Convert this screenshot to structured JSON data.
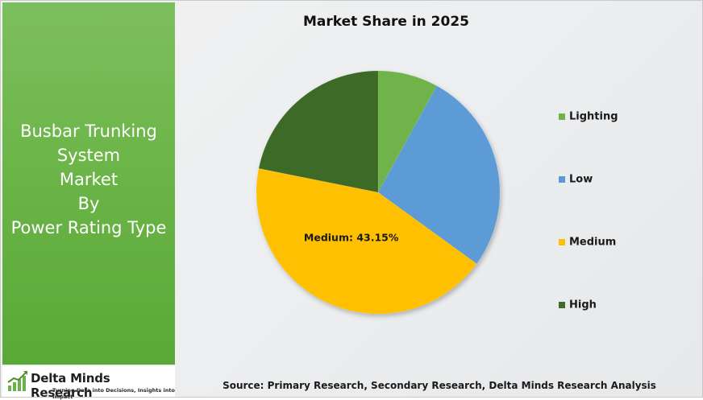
{
  "panel": {
    "title_lines": [
      "Busbar Trunking",
      "System",
      "Market",
      "By",
      "Power Rating Type"
    ]
  },
  "logo": {
    "name": "Delta Minds Research",
    "tagline": "Turning Data into Decisions, Insights into Impact"
  },
  "source_text": "Source: Primary Research, Secondary Research, Delta Minds Research Analysis",
  "chart_data": {
    "type": "pie",
    "title": "Market Share in 2025",
    "legend_position": "right",
    "slices": [
      {
        "label": "Lighting",
        "value": 8.0,
        "color": "#70b34c"
      },
      {
        "label": "Low",
        "value": 27.0,
        "color": "#5b9bd5"
      },
      {
        "label": "Medium",
        "value": 43.15,
        "color": "#fec000"
      },
      {
        "label": "High",
        "value": 21.85,
        "color": "#3e6b28"
      }
    ],
    "data_labels": [
      {
        "slice": "Medium",
        "text": "Medium: 43.15%"
      }
    ]
  }
}
